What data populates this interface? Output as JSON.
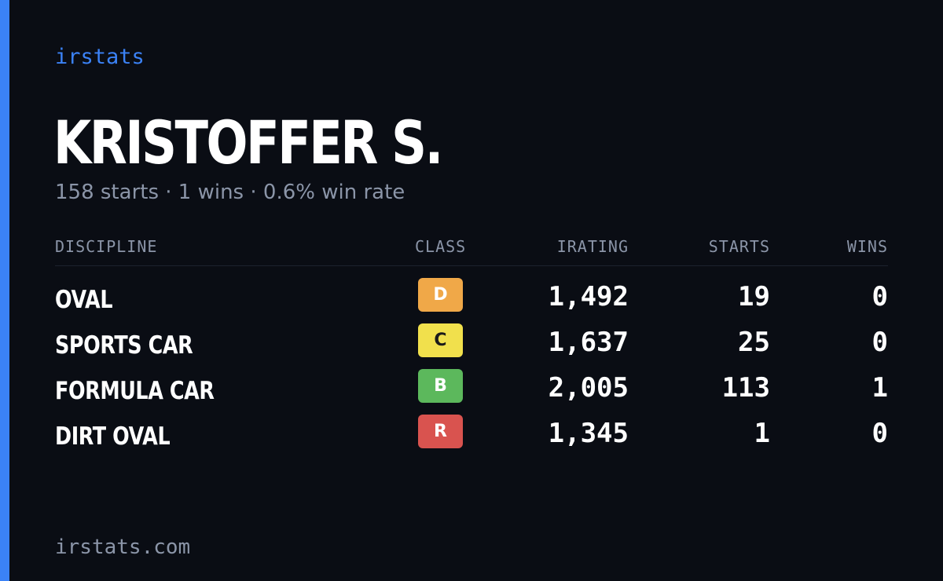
{
  "brand": "irstats",
  "driver": {
    "name": "KRISTOFFER S.",
    "summary": "158 starts · 1 wins · 0.6% win rate"
  },
  "table": {
    "headers": {
      "discipline": "DISCIPLINE",
      "class": "CLASS",
      "irating": "IRATING",
      "starts": "STARTS",
      "wins": "WINS"
    },
    "rows": [
      {
        "discipline": "OVAL",
        "class": "D",
        "class_color": "#f0a848",
        "class_text_color": "#ffffff",
        "irating": "1,492",
        "starts": "19",
        "wins": "0"
      },
      {
        "discipline": "SPORTS CAR",
        "class": "C",
        "class_color": "#f1e04c",
        "class_text_color": "#1a1a1a",
        "irating": "1,637",
        "starts": "25",
        "wins": "0"
      },
      {
        "discipline": "FORMULA CAR",
        "class": "B",
        "class_color": "#5cb85c",
        "class_text_color": "#ffffff",
        "irating": "2,005",
        "starts": "113",
        "wins": "1"
      },
      {
        "discipline": "DIRT OVAL",
        "class": "R",
        "class_color": "#d9534f",
        "class_text_color": "#ffffff",
        "irating": "1,345",
        "starts": "1",
        "wins": "0"
      }
    ]
  },
  "footer": "irstats.com",
  "colors": {
    "background": "#0a0d14",
    "accent": "#3b82f6",
    "muted_text": "#8b95a8"
  }
}
